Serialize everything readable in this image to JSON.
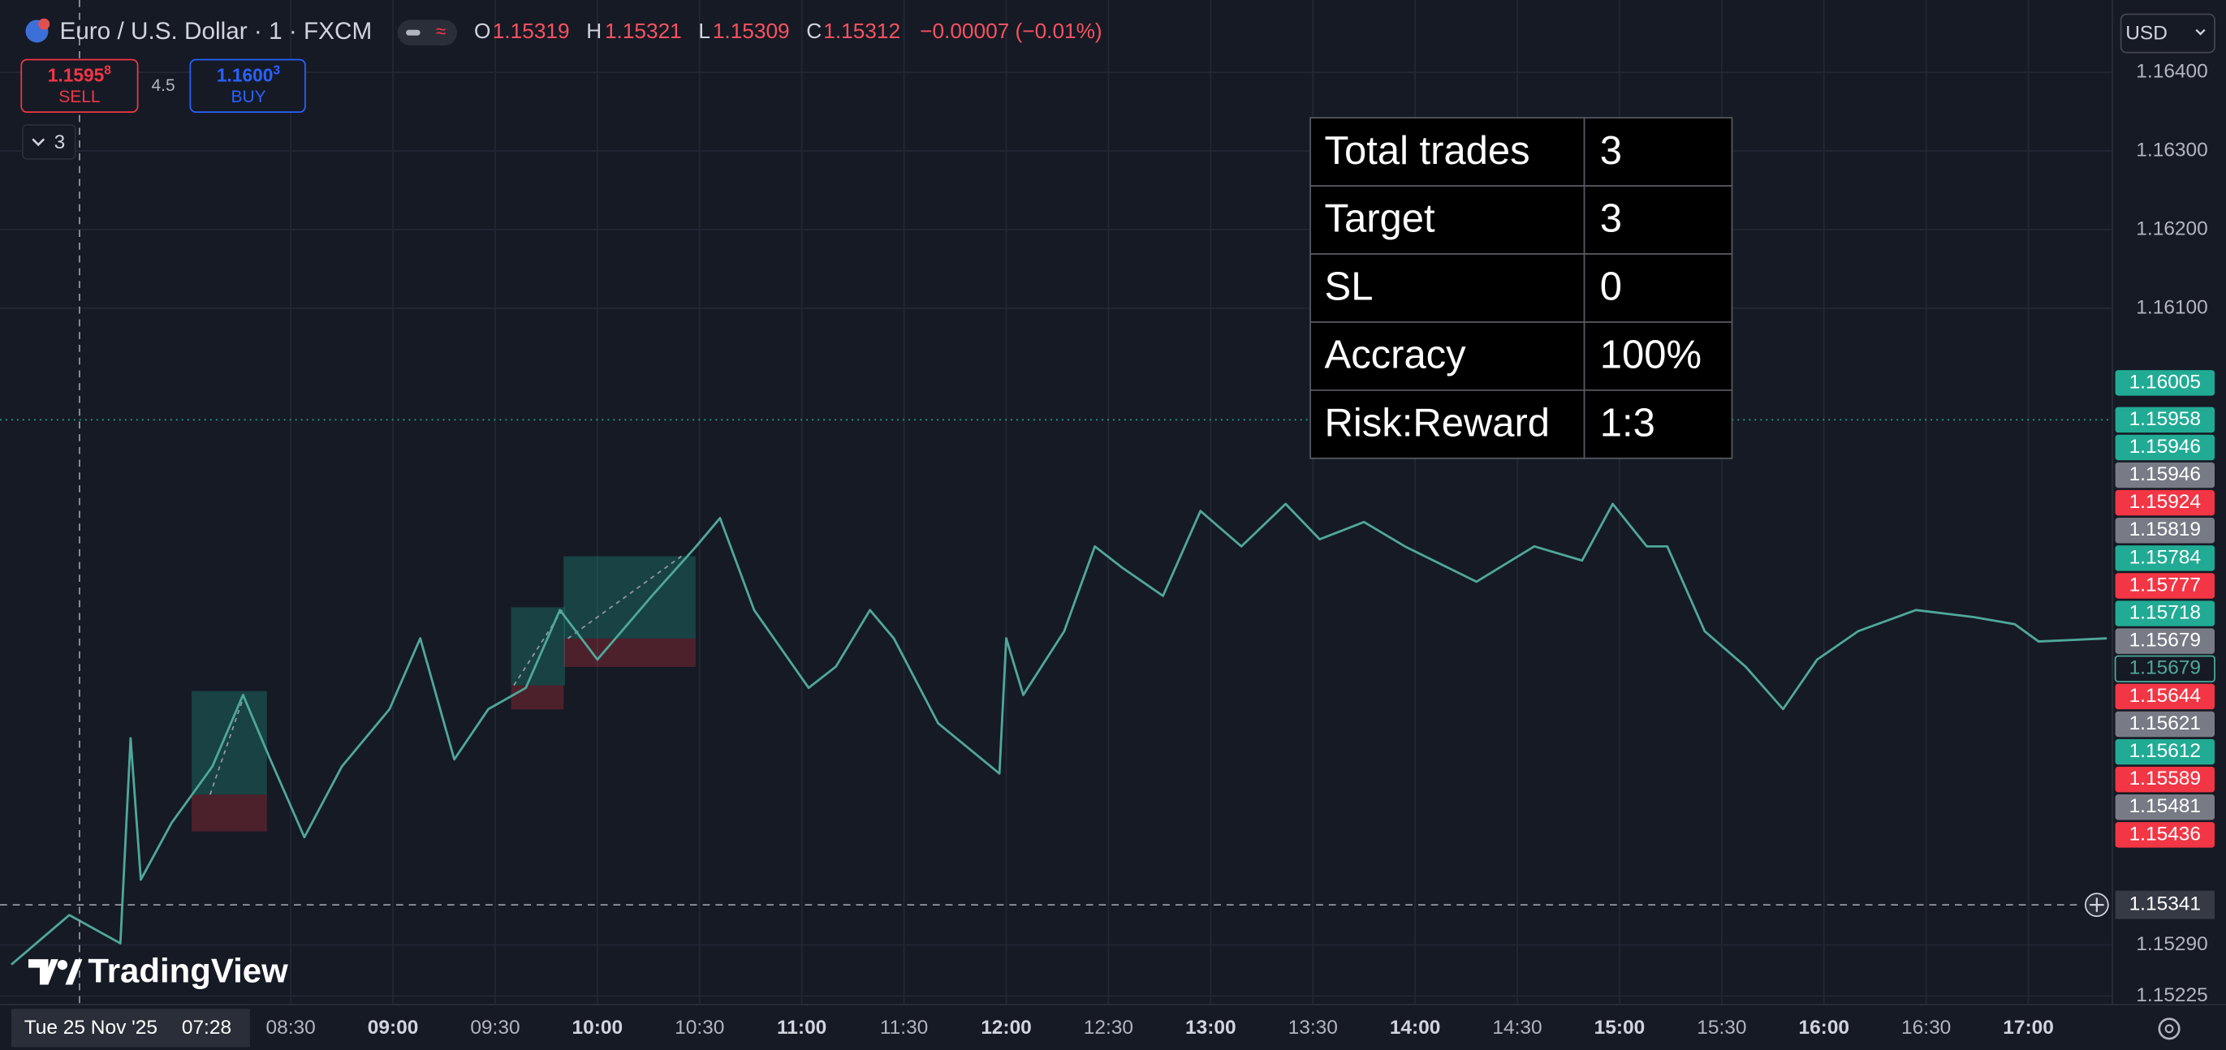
{
  "header": {
    "symbol": "Euro / U.S. Dollar · 1 · FXCM",
    "open_label": "O",
    "open": "1.15319",
    "high_label": "H",
    "high": "1.15321",
    "low_label": "L",
    "low": "1.15309",
    "close_label": "C",
    "close": "1.15312",
    "change": "−0.00007 (−0.01%)"
  },
  "order": {
    "sell": {
      "price": "1.1595",
      "pip": "8",
      "label": "SELL"
    },
    "spread": "4.5",
    "buy": {
      "price": "1.1600",
      "pip": "3",
      "label": "BUY"
    }
  },
  "indicators_count": "3",
  "currency": "USD",
  "logo": "TradingView",
  "table": {
    "rows": [
      [
        "Total trades",
        "3"
      ],
      [
        "Target",
        "3"
      ],
      [
        "SL",
        "0"
      ],
      [
        "Accracy",
        "100%"
      ],
      [
        "Risk:Reward",
        "1:3"
      ]
    ]
  },
  "chart": {
    "type": "line",
    "color": "#4fa89a",
    "x": [
      "07:08",
      "07:25",
      "07:40",
      "07:43",
      "07:46",
      "07:55",
      "08:07",
      "08:16",
      "08:24",
      "08:34",
      "08:45",
      "08:59",
      "09:08",
      "09:18",
      "09:28",
      "09:39",
      "09:49",
      "10:00",
      "10:16",
      "10:29",
      "10:36",
      "10:46",
      "11:02",
      "11:10",
      "11:20",
      "11:27",
      "11:40",
      "11:58",
      "12:00",
      "12:05",
      "12:17",
      "12:26",
      "12:34",
      "12:46",
      "12:57",
      "13:09",
      "13:22",
      "13:32",
      "13:45",
      "13:57",
      "14:18",
      "14:35",
      "14:49",
      "14:58",
      "15:08",
      "15:14",
      "15:25",
      "15:37",
      "15:48",
      "15:58",
      "16:10",
      "16:27",
      "16:44",
      "16:56",
      "17:03",
      "17:23"
    ],
    "values": [
      1.15265,
      1.15328,
      1.15292,
      1.15553,
      1.15373,
      1.15445,
      1.15517,
      1.15608,
      1.15526,
      1.15427,
      1.15517,
      1.1559,
      1.1568,
      1.15526,
      1.1559,
      1.15617,
      1.15716,
      1.15653,
      1.15734,
      1.15797,
      1.15833,
      1.15716,
      1.15617,
      1.15644,
      1.15716,
      1.1568,
      1.15572,
      1.15508,
      1.1568,
      1.15608,
      1.15689,
      1.15797,
      1.1577,
      1.15734,
      1.15842,
      1.15797,
      1.15851,
      1.15806,
      1.15828,
      1.15797,
      1.15752,
      1.15797,
      1.15779,
      1.15851,
      1.15797,
      1.15797,
      1.15689,
      1.15644,
      1.1559,
      1.15653,
      1.15689,
      1.15716,
      1.15707,
      1.15698,
      1.15676,
      1.1568
    ]
  },
  "price_axis": {
    "ticks": [
      {
        "value": 1.164,
        "label": "1.16400"
      },
      {
        "value": 1.163,
        "label": "1.16300"
      },
      {
        "value": 1.162,
        "label": "1.16200"
      },
      {
        "value": 1.161,
        "label": "1.16100"
      },
      {
        "value": 1.1529,
        "label": "1.15290"
      },
      {
        "value": 1.15225,
        "label": "1.15225"
      }
    ],
    "tags": [
      {
        "value": 1.16005,
        "color": "#22ab94"
      },
      {
        "value": 1.15958,
        "color": "#22ab94"
      },
      {
        "value": 1.15946,
        "color": "#22ab94"
      },
      {
        "value": 1.15946,
        "color": "#787b86"
      },
      {
        "value": 1.15924,
        "color": "#f23645"
      },
      {
        "value": 1.15819,
        "color": "#787b86"
      },
      {
        "value": 1.15784,
        "color": "#22ab94"
      },
      {
        "value": 1.15777,
        "color": "#f23645"
      },
      {
        "value": 1.15718,
        "color": "#22ab94"
      },
      {
        "value": 1.15679,
        "color": "#787b86"
      },
      {
        "value": 1.15679,
        "color": "#4fa89a",
        "style": "outline"
      },
      {
        "value": 1.15644,
        "color": "#f23645"
      },
      {
        "value": 1.15621,
        "color": "#787b86"
      },
      {
        "value": 1.15612,
        "color": "#22ab94"
      },
      {
        "value": 1.15589,
        "color": "#f23645"
      },
      {
        "value": 1.15481,
        "color": "#787b86"
      },
      {
        "value": 1.15436,
        "color": "#f23645"
      }
    ]
  },
  "time_axis": {
    "ticks": [
      "08:30",
      "09:00",
      "09:30",
      "10:00",
      "10:30",
      "11:00",
      "11:30",
      "12:00",
      "12:30",
      "13:00",
      "13:30",
      "14:00",
      "14:30",
      "15:00",
      "15:30",
      "16:00",
      "16:30",
      "17:00"
    ],
    "cursor_date": "Tue 25 Nov '25",
    "cursor_time": "07:28"
  },
  "crosshair": {
    "price": 1.15341
  }
}
